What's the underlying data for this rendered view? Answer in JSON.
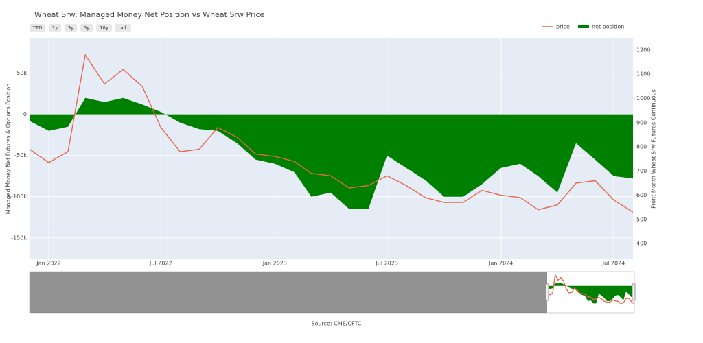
{
  "chart_data": {
    "type": "line-area",
    "title": "Wheat Srw: Managed Money Net Position vs Wheat Srw Price",
    "buttons": [
      "YTD",
      "1y",
      "3y",
      "5y",
      "10y",
      "all"
    ],
    "y_label": "Managed Money Net Futures & Options Position",
    "y2_label": "Front Month Wheat Srw Futures Continuous",
    "source": "Source: CME/CFTC",
    "x": [
      "2021-12",
      "2022-01",
      "2022-02",
      "2022-03",
      "2022-04",
      "2022-05",
      "2022-06",
      "2022-07",
      "2022-08",
      "2022-09",
      "2022-10",
      "2022-11",
      "2022-12",
      "2023-01",
      "2023-02",
      "2023-03",
      "2023-04",
      "2023-05",
      "2023-06",
      "2023-07",
      "2023-08",
      "2023-09",
      "2023-10",
      "2023-11",
      "2023-12",
      "2024-01",
      "2024-02",
      "2024-03",
      "2024-04",
      "2024-05",
      "2024-06",
      "2024-07",
      "2024-08"
    ],
    "xlim": [
      "2021-12",
      "2024-08"
    ],
    "xticks": [
      {
        "value": "2022-01",
        "label": "Jan 2022"
      },
      {
        "value": "2022-07",
        "label": "Jul 2022"
      },
      {
        "value": "2023-01",
        "label": "Jan 2023"
      },
      {
        "value": "2023-07",
        "label": "Jul 2023"
      },
      {
        "value": "2024-01",
        "label": "Jan 2024"
      },
      {
        "value": "2024-07",
        "label": "Jul 2024"
      }
    ],
    "ylim": [
      -176000,
      93000
    ],
    "yticks": [
      {
        "value": 50000,
        "label": "50k"
      },
      0,
      {
        "value": -50000,
        "label": "-50k"
      },
      {
        "value": -100000,
        "label": "-100k"
      },
      {
        "value": -150000,
        "label": "-150k"
      }
    ],
    "y2lim": [
      335,
      1251
    ],
    "y2ticks": [
      400,
      500,
      600,
      700,
      800,
      900,
      1000,
      1100,
      1200
    ],
    "grid": true,
    "series": [
      {
        "name": "price",
        "color": "#e8664a",
        "kind": "line",
        "axis": "y2",
        "values": [
          790,
          735,
          780,
          1180,
          1060,
          1120,
          1050,
          880,
          780,
          790,
          880,
          840,
          770,
          760,
          740,
          690,
          680,
          630,
          640,
          680,
          640,
          590,
          570,
          570,
          620,
          600,
          590,
          540,
          560,
          650,
          660,
          580,
          530
        ]
      },
      {
        "name": "net position",
        "color": "#008000",
        "kind": "area",
        "values": [
          -8000,
          -20000,
          -15000,
          20000,
          15000,
          20000,
          12000,
          3000,
          -10000,
          -18000,
          -20000,
          -35000,
          -55000,
          -60000,
          -70000,
          -100000,
          -95000,
          -115000,
          -115000,
          -50000,
          -65000,
          -80000,
          -100000,
          -100000,
          -85000,
          -65000,
          -60000,
          -75000,
          -95000,
          -35000,
          -55000,
          -75000,
          -78000
        ]
      }
    ]
  }
}
